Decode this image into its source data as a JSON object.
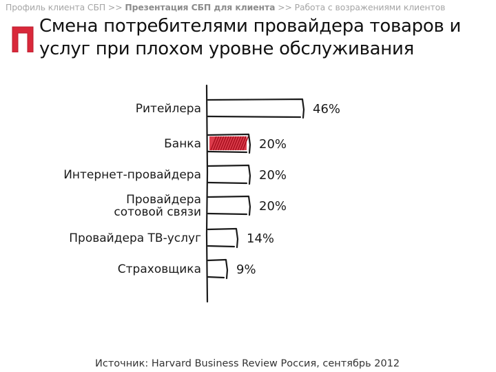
{
  "breadcrumb": {
    "part1": "Профиль клиента СБП >> ",
    "part2": "Презентация СБП для клиента",
    "part3": " >> Работа с возражениями клиентов"
  },
  "title": "Смена потребителями провайдера товаров и услуг при плохом уровне обслуживания",
  "icons": {
    "logo": "red-bracket-logo-icon"
  },
  "colors": {
    "highlight": "#d9283a",
    "ink": "#1a1a1a"
  },
  "chart_data": {
    "type": "bar",
    "orientation": "horizontal",
    "categories": [
      "Ритейлера",
      "Банка",
      "Интернет-провайдера",
      "Провайдера сотовой связи",
      "Провайдера ТВ-услуг",
      "Страховщика"
    ],
    "category_lines": [
      [
        "Ритейлера"
      ],
      [
        "Банка"
      ],
      [
        "Интернет-провайдера"
      ],
      [
        "Провайдера",
        "сотовой связи"
      ],
      [
        "Провайдера ТВ-услуг"
      ],
      [
        "Страховщика"
      ]
    ],
    "values": [
      46,
      20,
      20,
      20,
      14,
      9
    ],
    "value_labels": [
      "46%",
      "20%",
      "20%",
      "20%",
      "14%",
      "9%"
    ],
    "highlighted_category": "Банка",
    "xlim": [
      0,
      50
    ],
    "grid": false
  },
  "source": "Источник: Harvard Business Review Россия, сентябрь 2012"
}
